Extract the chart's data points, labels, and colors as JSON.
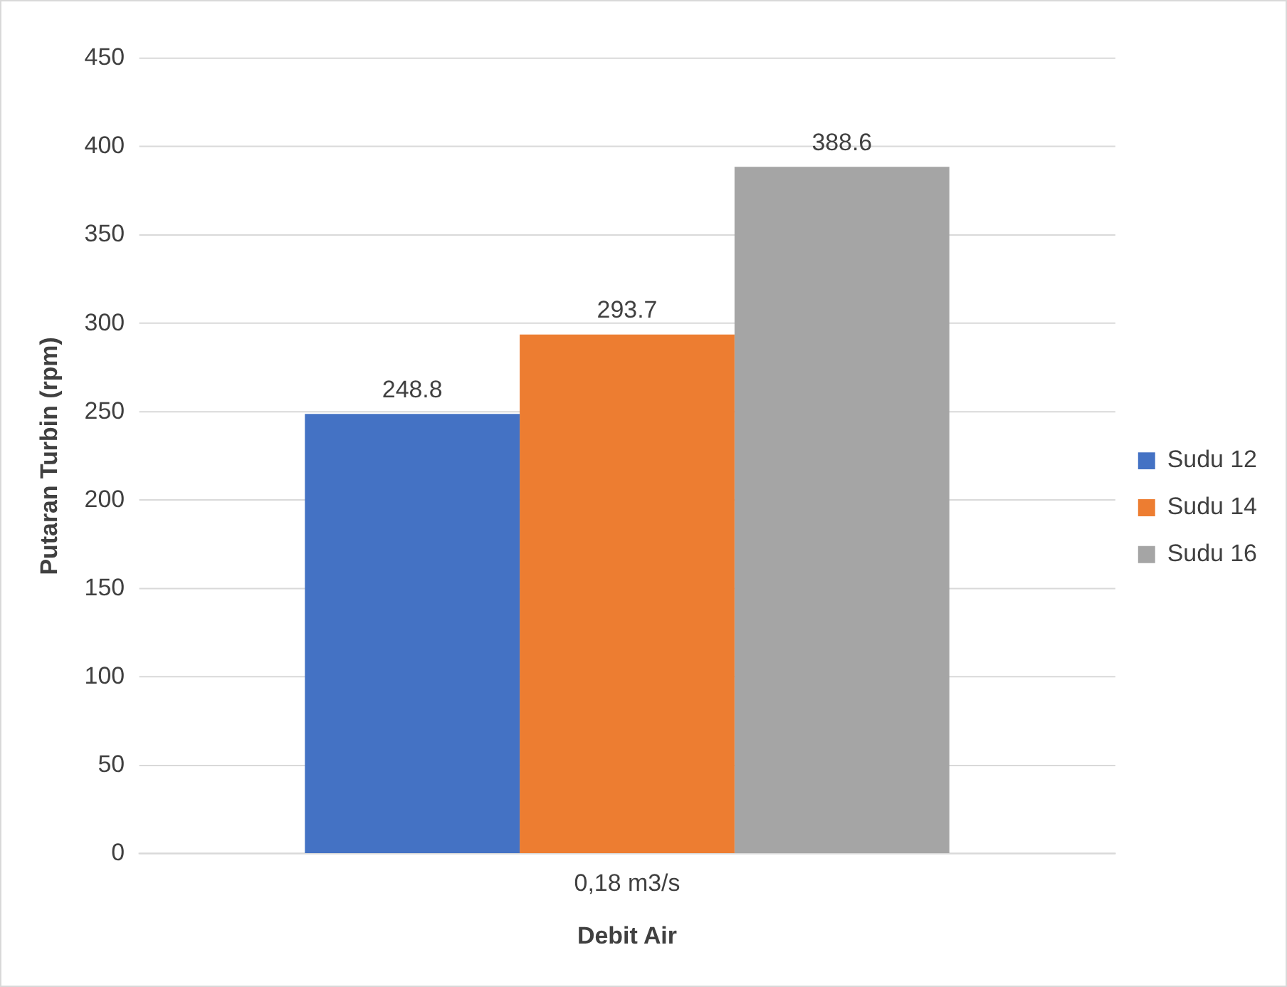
{
  "chart_data": {
    "type": "bar",
    "xlabel": "Debit Air",
    "ylabel": "Putaran Turbin (rpm)",
    "categories": [
      "0,18 m3/s"
    ],
    "series": [
      {
        "name": "Sudu 12",
        "color": "#4472c4",
        "values": [
          248.8
        ]
      },
      {
        "name": "Sudu 14",
        "color": "#ed7d31",
        "values": [
          293.7
        ]
      },
      {
        "name": "Sudu 16",
        "color": "#a5a5a5",
        "values": [
          388.6
        ]
      }
    ],
    "ylim": [
      0,
      450
    ],
    "yticks": [
      0,
      50,
      100,
      150,
      200,
      250,
      300,
      350,
      400,
      450
    ],
    "grid": "y",
    "legend": "right",
    "data_labels": true
  }
}
